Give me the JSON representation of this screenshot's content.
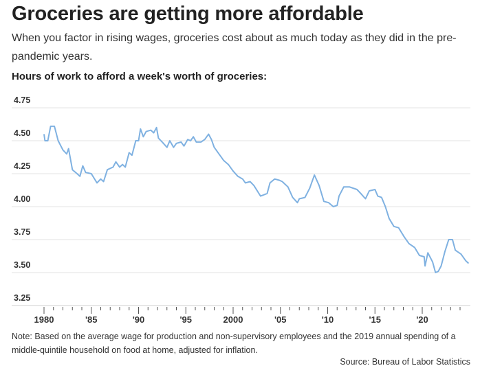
{
  "title": "Groceries are getting more affordable",
  "subtitle": "When you factor in rising wages, groceries cost about as much today as they did in the pre-pandemic years.",
  "note": "Note: Based on the average wage for production and non-supervisory employees and the 2019 annual spending of a middle-quintile household on food at home, adjusted for inflation.",
  "source": "Source: Bureau of Labor Statistics",
  "colors": {
    "line": "#7fb1e1",
    "grid": "#e3e3e3"
  },
  "chart_data": {
    "type": "line",
    "title": "Hours of work to afford a week's worth of groceries:",
    "xlabel": "",
    "ylabel": "",
    "ylim": [
      3.25,
      4.75
    ],
    "xlim": [
      1980,
      2025
    ],
    "yticks": [
      "3.25",
      "3.50",
      "3.75",
      "4.00",
      "4.25",
      "4.50",
      "4.75"
    ],
    "xticks": [
      {
        "v": 1980,
        "label": "1980"
      },
      {
        "v": 1985,
        "label": "'85"
      },
      {
        "v": 1990,
        "label": "'90"
      },
      {
        "v": 1995,
        "label": "'95"
      },
      {
        "v": 2000,
        "label": "2000"
      },
      {
        "v": 2005,
        "label": "'05"
      },
      {
        "v": 2010,
        "label": "'10"
      },
      {
        "v": 2015,
        "label": "'15"
      },
      {
        "v": 2020,
        "label": "'20"
      }
    ],
    "grid": true,
    "series": [
      {
        "name": "Hours of work",
        "points": [
          [
            1980.0,
            4.55
          ],
          [
            1980.1,
            4.5
          ],
          [
            1980.4,
            4.5
          ],
          [
            1980.7,
            4.61
          ],
          [
            1981.1,
            4.61
          ],
          [
            1981.5,
            4.5
          ],
          [
            1982.0,
            4.43
          ],
          [
            1982.4,
            4.4
          ],
          [
            1982.6,
            4.44
          ],
          [
            1983.0,
            4.28
          ],
          [
            1983.5,
            4.25
          ],
          [
            1983.8,
            4.23
          ],
          [
            1984.1,
            4.31
          ],
          [
            1984.4,
            4.26
          ],
          [
            1985.0,
            4.25
          ],
          [
            1985.6,
            4.18
          ],
          [
            1986.0,
            4.21
          ],
          [
            1986.3,
            4.19
          ],
          [
            1986.7,
            4.28
          ],
          [
            1987.3,
            4.3
          ],
          [
            1987.6,
            4.34
          ],
          [
            1988.0,
            4.3
          ],
          [
            1988.3,
            4.32
          ],
          [
            1988.6,
            4.3
          ],
          [
            1989.0,
            4.41
          ],
          [
            1989.3,
            4.39
          ],
          [
            1989.7,
            4.5
          ],
          [
            1990.0,
            4.5
          ],
          [
            1990.2,
            4.59
          ],
          [
            1990.5,
            4.53
          ],
          [
            1990.8,
            4.57
          ],
          [
            1991.3,
            4.58
          ],
          [
            1991.6,
            4.56
          ],
          [
            1991.9,
            4.6
          ],
          [
            1992.1,
            4.52
          ],
          [
            1992.5,
            4.49
          ],
          [
            1993.0,
            4.45
          ],
          [
            1993.3,
            4.5
          ],
          [
            1993.7,
            4.45
          ],
          [
            1994.0,
            4.48
          ],
          [
            1994.5,
            4.49
          ],
          [
            1994.8,
            4.46
          ],
          [
            1995.2,
            4.51
          ],
          [
            1995.5,
            4.5
          ],
          [
            1995.8,
            4.53
          ],
          [
            1996.1,
            4.49
          ],
          [
            1996.6,
            4.49
          ],
          [
            1997.0,
            4.51
          ],
          [
            1997.4,
            4.55
          ],
          [
            1997.7,
            4.51
          ],
          [
            1998.0,
            4.45
          ],
          [
            1998.5,
            4.4
          ],
          [
            1999.0,
            4.35
          ],
          [
            1999.5,
            4.32
          ],
          [
            2000.0,
            4.27
          ],
          [
            2000.5,
            4.23
          ],
          [
            2001.0,
            4.21
          ],
          [
            2001.3,
            4.18
          ],
          [
            2001.8,
            4.19
          ],
          [
            2002.2,
            4.16
          ],
          [
            2002.9,
            4.08
          ],
          [
            2003.6,
            4.1
          ],
          [
            2003.9,
            4.18
          ],
          [
            2004.4,
            4.21
          ],
          [
            2004.9,
            4.2
          ],
          [
            2005.2,
            4.19
          ],
          [
            2005.8,
            4.15
          ],
          [
            2006.3,
            4.07
          ],
          [
            2006.8,
            4.03
          ],
          [
            2007.0,
            4.06
          ],
          [
            2007.6,
            4.07
          ],
          [
            2008.1,
            4.14
          ],
          [
            2008.6,
            4.24
          ],
          [
            2009.1,
            4.16
          ],
          [
            2009.6,
            4.04
          ],
          [
            2010.1,
            4.03
          ],
          [
            2010.6,
            4.0
          ],
          [
            2011.0,
            4.01
          ],
          [
            2011.2,
            4.08
          ],
          [
            2011.7,
            4.15
          ],
          [
            2012.3,
            4.15
          ],
          [
            2013.1,
            4.13
          ],
          [
            2013.5,
            4.1
          ],
          [
            2014.0,
            4.06
          ],
          [
            2014.4,
            4.12
          ],
          [
            2015.0,
            4.13
          ],
          [
            2015.3,
            4.08
          ],
          [
            2015.7,
            4.07
          ],
          [
            2016.1,
            4.0
          ],
          [
            2016.5,
            3.91
          ],
          [
            2017.0,
            3.85
          ],
          [
            2017.5,
            3.84
          ],
          [
            2018.1,
            3.77
          ],
          [
            2018.6,
            3.72
          ],
          [
            2019.2,
            3.69
          ],
          [
            2019.7,
            3.63
          ],
          [
            2020.2,
            3.62
          ],
          [
            2020.3,
            3.55
          ],
          [
            2020.6,
            3.65
          ],
          [
            2021.1,
            3.58
          ],
          [
            2021.4,
            3.5
          ],
          [
            2021.7,
            3.51
          ],
          [
            2022.0,
            3.55
          ],
          [
            2022.4,
            3.66
          ],
          [
            2022.8,
            3.75
          ],
          [
            2023.2,
            3.75
          ],
          [
            2023.5,
            3.67
          ],
          [
            2024.1,
            3.64
          ],
          [
            2024.6,
            3.59
          ],
          [
            2024.9,
            3.57
          ]
        ]
      }
    ]
  }
}
